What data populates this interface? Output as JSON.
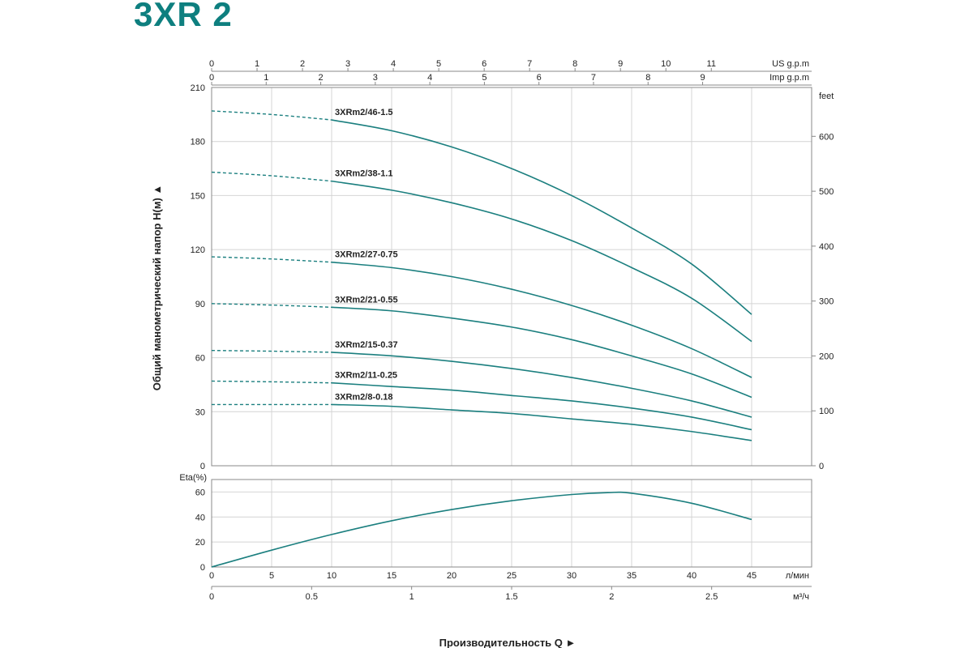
{
  "title": "3XR 2",
  "chart_data": [
    {
      "type": "line",
      "title": "",
      "x": [
        10,
        15,
        20,
        25,
        30,
        35,
        40,
        45
      ],
      "x_unit": "л/мин",
      "xlim": [
        0,
        50
      ],
      "x_ticks": [
        0,
        5,
        10,
        15,
        20,
        25,
        30,
        35,
        40,
        45
      ],
      "ylabel": "Общий манометрический напор Н(м) ▲",
      "ylim": [
        0,
        210
      ],
      "y_ticks": [
        0,
        30,
        60,
        90,
        120,
        150,
        180,
        210
      ],
      "y2_unit": "feet",
      "y2_ticks": [
        0,
        100,
        200,
        300,
        400,
        500,
        600
      ],
      "top_axes": [
        {
          "unit": "US g.p.m",
          "ticks": [
            0,
            1,
            2,
            3,
            4,
            5,
            6,
            7,
            8,
            9,
            10,
            11
          ]
        },
        {
          "unit": "Imp g.p.m",
          "ticks": [
            0,
            1,
            2,
            3,
            4,
            5,
            6,
            7,
            8,
            9
          ]
        }
      ],
      "shutoff_note": "dashed segment from Q=0 to Q=10",
      "grid": true,
      "series": [
        {
          "name": "3XRm2/46-1.5",
          "shutoff": 197,
          "values": [
            192,
            186,
            177,
            165,
            150,
            132,
            112,
            84
          ]
        },
        {
          "name": "3XRm2/38-1.1",
          "shutoff": 163,
          "values": [
            158,
            153,
            146,
            137,
            125,
            110,
            93,
            69
          ]
        },
        {
          "name": "3XRm2/27-0.75",
          "shutoff": 116,
          "values": [
            113,
            110,
            105,
            98,
            89,
            78,
            65,
            49
          ]
        },
        {
          "name": "3XRm2/21-0.55",
          "shutoff": 90,
          "values": [
            88,
            86,
            82,
            77,
            70,
            61,
            51,
            38
          ]
        },
        {
          "name": "3XRm2/15-0.37",
          "shutoff": 64,
          "values": [
            63,
            61,
            58,
            54,
            49,
            43,
            36,
            27
          ]
        },
        {
          "name": "3XRm2/11-0.25",
          "shutoff": 47,
          "values": [
            46,
            44,
            42,
            39,
            36,
            32,
            27,
            20
          ]
        },
        {
          "name": "3XRm2/8-0.18",
          "shutoff": 34,
          "values": [
            34,
            33,
            31,
            29,
            26,
            23,
            19,
            14
          ]
        }
      ],
      "color": "#1b7f7f"
    },
    {
      "type": "line",
      "ylabel": "Eta(%)",
      "ylim": [
        0,
        70
      ],
      "y_ticks": [
        0,
        20,
        40,
        60
      ],
      "x": [
        0,
        5,
        10,
        15,
        20,
        25,
        30,
        33,
        35,
        40,
        45
      ],
      "values": [
        0,
        13.5,
        26,
        37,
        46,
        53,
        58,
        59.5,
        59,
        51,
        38
      ],
      "x_unit": "л/мин",
      "x_ticks": [
        0,
        5,
        10,
        15,
        20,
        25,
        30,
        35,
        40,
        45
      ],
      "x2_unit": "м³/ч",
      "x2_ticks": [
        "0",
        "0.5",
        "1",
        "1.5",
        "2",
        "2.5"
      ],
      "xlabel": "Производительность  Q  ►"
    }
  ]
}
